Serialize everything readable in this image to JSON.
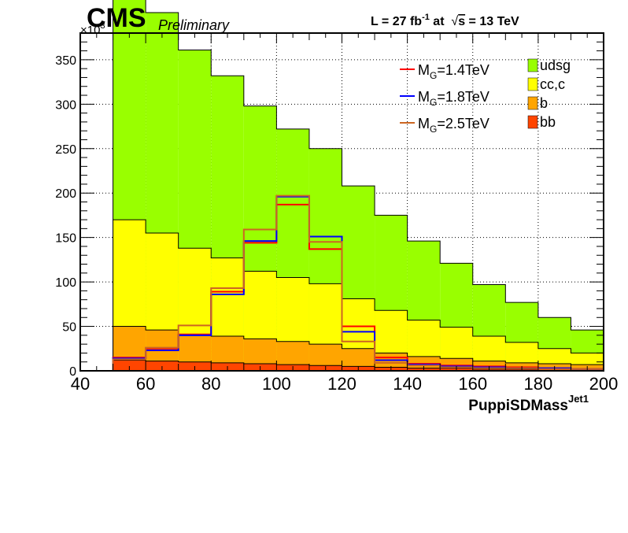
{
  "header": {
    "experiment": "CMS",
    "status": "Preliminary",
    "lumi_prefix": "L = 27 fb",
    "lumi_exp": "-1",
    "lumi_mid": " at  ",
    "sqrt_sym": "√",
    "energy_var": "s",
    "energy_suffix": " = 13 TeV"
  },
  "chart_data": {
    "type": "histogram",
    "title": "",
    "xlabel": "PuppiSDMass",
    "xlabel_sup": "Jet1",
    "ylabel": "",
    "y_multiplier": "×10",
    "y_multiplier_exp": "3",
    "xlim": [
      40,
      200
    ],
    "ylim": [
      0,
      380
    ],
    "x_ticks": [
      40,
      60,
      80,
      100,
      120,
      140,
      160,
      180,
      200
    ],
    "y_ticks": [
      0,
      50,
      100,
      150,
      200,
      250,
      300,
      350
    ],
    "grid": true,
    "bin_edges": [
      40,
      50,
      60,
      70,
      80,
      90,
      100,
      110,
      120,
      130,
      140,
      150,
      160,
      170,
      180,
      190,
      200
    ],
    "stacked": [
      {
        "name": "bb",
        "color": "#ff4500",
        "values": [
          0,
          12,
          11,
          10,
          9,
          8,
          7,
          6,
          5,
          4,
          3,
          3,
          2,
          2,
          2,
          2
        ]
      },
      {
        "name": "b",
        "color": "#ffa500",
        "values": [
          0,
          38,
          35,
          31,
          30,
          28,
          26,
          24,
          20,
          16,
          13,
          11,
          9,
          7,
          6,
          5
        ]
      },
      {
        "name": "cc,c",
        "color": "#ffff00",
        "values": [
          0,
          120,
          109,
          97,
          88,
          76,
          72,
          68,
          56,
          48,
          41,
          35,
          28,
          23,
          17,
          13
        ]
      },
      {
        "name": "udsg",
        "color": "#99ff00",
        "values": [
          0,
          278,
          248,
          223,
          205,
          186,
          167,
          152,
          127,
          107,
          89,
          72,
          58,
          45,
          35,
          26
        ]
      }
    ],
    "signals": [
      {
        "name": "M_G=1.4TeV",
        "label_main": "M",
        "label_sub": "G",
        "label_rest": "=1.4TeV",
        "color": "#ff0000",
        "values": [
          0,
          15,
          25,
          41,
          89,
          144,
          187,
          137,
          50,
          15,
          8,
          6,
          5,
          4,
          3,
          2
        ]
      },
      {
        "name": "M_G=1.8TeV",
        "label_main": "M",
        "label_sub": "G",
        "label_rest": "=1.8TeV",
        "color": "#0000ff",
        "values": [
          0,
          14,
          23,
          40,
          86,
          146,
          196,
          151,
          44,
          12,
          7,
          5,
          4,
          3,
          3,
          2
        ]
      },
      {
        "name": "M_G=2.5TeV",
        "label_main": "M",
        "label_sub": "G",
        "label_rest": "=2.5TeV",
        "color": "#cc6622",
        "values": [
          0,
          13,
          26,
          51,
          93,
          159,
          197,
          145,
          33,
          9,
          6,
          4,
          3,
          3,
          2,
          2
        ]
      }
    ],
    "legend_placement": "top-right"
  }
}
